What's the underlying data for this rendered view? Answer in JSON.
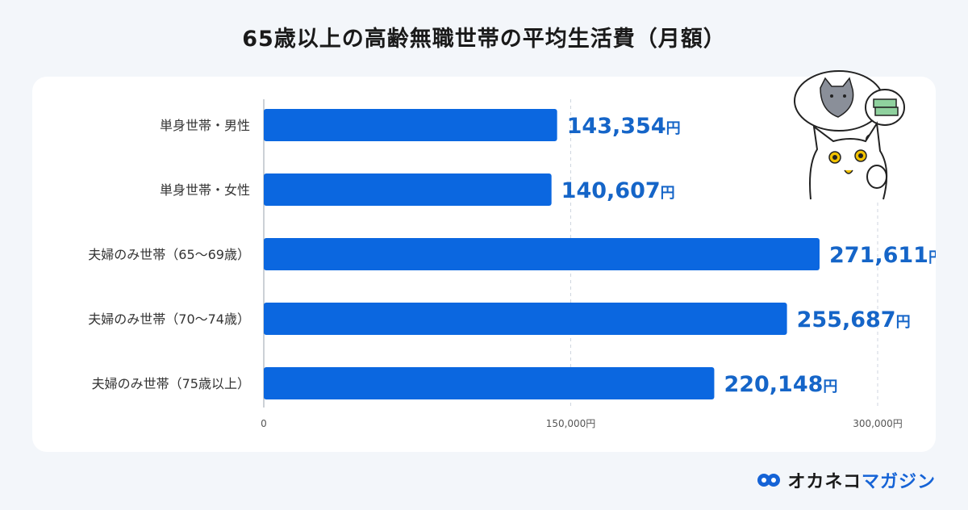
{
  "title": "65歳以上の高齢無職世帯の平均生活費（月額）",
  "brand": {
    "name_part1": "オカネコ",
    "name_part2": "マガジン",
    "logo_icon": "okaneko-logo-icon"
  },
  "illustration": {
    "icon": "thinking-cat-icon"
  },
  "colors": {
    "bar": "#0b67e0",
    "value_text": "#1565c8",
    "grid": "#cfd6df"
  },
  "chart_data": {
    "type": "bar",
    "orientation": "horizontal",
    "categories": [
      "単身世帯・男性",
      "単身世帯・女性",
      "夫婦のみ世帯（65～69歳）",
      "夫婦のみ世帯（70～74歳）",
      "夫婦のみ世帯（75歳以上）"
    ],
    "values": [
      143354,
      140607,
      271611,
      255687,
      220148
    ],
    "value_labels": [
      "143,354",
      "140,607",
      "271,611",
      "255,687",
      "220,148"
    ],
    "value_unit": "円",
    "xlim": [
      0,
      300000
    ],
    "xticks": [
      0,
      150000,
      300000
    ],
    "xtick_labels": [
      "0",
      "150,000円",
      "300,000円"
    ],
    "grid": true
  }
}
